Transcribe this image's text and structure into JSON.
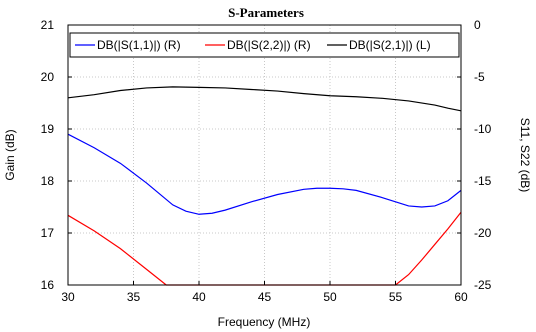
{
  "chart_data": {
    "type": "line",
    "title": "S-Parameters",
    "xlabel": "Frequency (MHz)",
    "ylabel_left": "Gain (dB)",
    "ylabel_right": "S11, S22 (dB)",
    "xlim": [
      30,
      60
    ],
    "ylim_left": [
      16,
      21
    ],
    "ylim_right": [
      -25,
      0
    ],
    "x_ticks": [
      "30",
      "35",
      "40",
      "45",
      "50",
      "55",
      "60"
    ],
    "y_left_ticks": [
      "16",
      "17",
      "18",
      "19",
      "20",
      "21"
    ],
    "y_right_ticks": [
      "-25",
      "-20",
      "-15",
      "-10",
      "-5",
      "0"
    ],
    "grid": true,
    "legend_position": "top",
    "series": [
      {
        "name": "DB(|S(1,1)|) (R)",
        "axis": "right",
        "color": "#0000ff",
        "x": [
          30,
          32,
          34,
          36,
          38,
          39,
          40,
          41,
          42,
          44,
          46,
          48,
          49,
          50,
          51,
          52,
          54,
          56,
          57,
          58,
          59,
          60
        ],
        "y": [
          -10.5,
          -11.8,
          -13.3,
          -15.2,
          -17.3,
          -17.9,
          -18.2,
          -18.1,
          -17.8,
          -17.0,
          -16.3,
          -15.8,
          -15.7,
          -15.7,
          -15.75,
          -15.9,
          -16.6,
          -17.4,
          -17.5,
          -17.4,
          -16.9,
          -15.9
        ]
      },
      {
        "name": "DB(|S(2,2)|) (R)",
        "axis": "right",
        "color": "#ff0000",
        "x": [
          30,
          32,
          34,
          36,
          37.5,
          55,
          56,
          57,
          58,
          59,
          60
        ],
        "y": [
          -18.3,
          -19.8,
          -21.5,
          -23.5,
          -25.0,
          -25.0,
          -24.0,
          -22.6,
          -21.1,
          -19.6,
          -18.0
        ]
      },
      {
        "name": "DB(|S(2,1)|) (L)",
        "axis": "left",
        "color": "#000000",
        "x": [
          30,
          32,
          34,
          36,
          38,
          40,
          42,
          44,
          46,
          48,
          50,
          52,
          54,
          56,
          58,
          59,
          60
        ],
        "y": [
          19.6,
          19.66,
          19.74,
          19.79,
          19.81,
          19.8,
          19.79,
          19.76,
          19.73,
          19.68,
          19.64,
          19.62,
          19.59,
          19.54,
          19.46,
          19.4,
          19.35
        ]
      }
    ]
  }
}
